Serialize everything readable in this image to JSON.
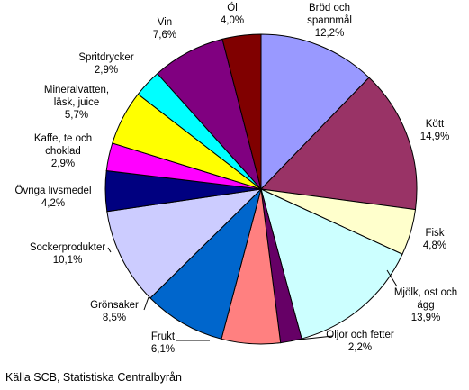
{
  "source_note": "Källa SCB, Statistiska Centralbyrån",
  "chart_data": {
    "type": "pie",
    "start_angle_deg": 0,
    "direction": "clockwise",
    "slices": [
      {
        "label": "Bröd och spannmål",
        "lines": [
          "Bröd och",
          "spannmål"
        ],
        "value": 12.2,
        "value_text": "12,2%",
        "color": "#9999ff"
      },
      {
        "label": "Kött",
        "lines": [
          "Kött"
        ],
        "value": 14.9,
        "value_text": "14,9%",
        "color": "#993366"
      },
      {
        "label": "Fisk",
        "lines": [
          "Fisk"
        ],
        "value": 4.8,
        "value_text": "4,8%",
        "color": "#ffffcc"
      },
      {
        "label": "Mjölk, ost och ägg",
        "lines": [
          "Mjölk, ost och",
          "ägg"
        ],
        "value": 13.9,
        "value_text": "13,9%",
        "color": "#ccffff"
      },
      {
        "label": "Oljor och fetter",
        "lines": [
          "Oljor och fetter"
        ],
        "value": 2.2,
        "value_text": "2,2%",
        "color": "#660066"
      },
      {
        "label": "Frukt",
        "lines": [
          "Frukt"
        ],
        "value": 6.1,
        "value_text": "6,1%",
        "color": "#ff8080"
      },
      {
        "label": "Grönsaker",
        "lines": [
          "Grönsaker"
        ],
        "value": 8.5,
        "value_text": "8,5%",
        "color": "#0066cc"
      },
      {
        "label": "Sockerprodukter",
        "lines": [
          "Sockerprodukter"
        ],
        "value": 10.1,
        "value_text": "10,1%",
        "color": "#ccccff"
      },
      {
        "label": "Övriga livsmedel",
        "lines": [
          "Övriga livsmedel"
        ],
        "value": 4.2,
        "value_text": "4,2%",
        "color": "#000080"
      },
      {
        "label": "Kaffe, te och choklad",
        "lines": [
          "Kaffe, te och",
          "choklad"
        ],
        "value": 2.9,
        "value_text": "2,9%",
        "color": "#ff00ff"
      },
      {
        "label": "Mineralvatten, läsk, juice",
        "lines": [
          "Mineralvatten,",
          "läsk, juice"
        ],
        "value": 5.7,
        "value_text": "5,7%",
        "color": "#ffff00"
      },
      {
        "label": "Spritdrycker",
        "lines": [
          "Spritdrycker"
        ],
        "value": 2.9,
        "value_text": "2,9%",
        "color": "#00ffff"
      },
      {
        "label": "Vin",
        "lines": [
          "Vin"
        ],
        "value": 7.6,
        "value_text": "7,6%",
        "color": "#800080"
      },
      {
        "label": "Öl",
        "lines": [
          "Öl"
        ],
        "value": 4.0,
        "value_text": "4,0%",
        "color": "#800000"
      }
    ]
  }
}
